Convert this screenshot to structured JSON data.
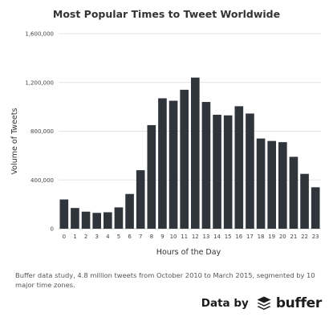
{
  "chart_data": {
    "type": "bar",
    "title": "Most Popular Times to Tweet Worldwide",
    "xlabel": "Hours of the Day",
    "ylabel": "Volume of Tweets",
    "categories": [
      "0",
      "1",
      "2",
      "3",
      "4",
      "5",
      "6",
      "7",
      "8",
      "9",
      "10",
      "11",
      "12",
      "13",
      "14",
      "15",
      "16",
      "17",
      "18",
      "19",
      "20",
      "21",
      "22",
      "23"
    ],
    "values": [
      240000,
      170000,
      140000,
      130000,
      135000,
      175000,
      285000,
      480000,
      850000,
      1070000,
      1050000,
      1140000,
      1240000,
      1040000,
      935000,
      930000,
      1005000,
      945000,
      740000,
      720000,
      710000,
      590000,
      450000,
      340000
    ],
    "ylim": [
      0,
      1600000
    ],
    "yticks": [
      0,
      400000,
      800000,
      1200000,
      1600000
    ],
    "ytick_labels": [
      "0",
      "400,000",
      "800,000",
      "1,200,000",
      "1,600,000"
    ],
    "grid": true,
    "legend": "none",
    "bar_color": "#2f353b"
  },
  "caption": "Buffer data study, 4.8 million tweets from October 2010 to March 2015, segmented by 10 major time zones.",
  "branding": {
    "data_by": "Data by",
    "logo_word": "buffer",
    "logo_icon": "buffer-stack-icon"
  }
}
